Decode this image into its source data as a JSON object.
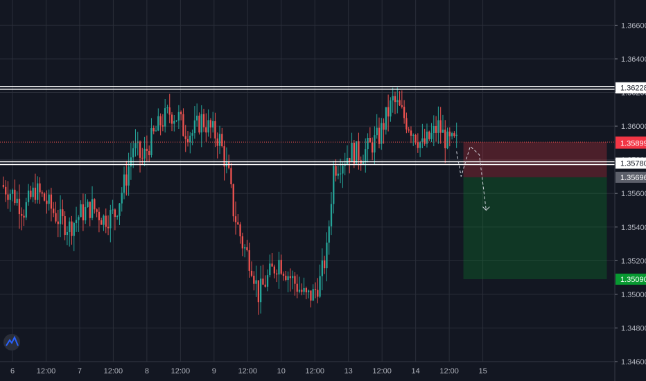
{
  "colors": {
    "background": "#131722",
    "grid": "#2a2e39",
    "bull": "#26a69a",
    "bear": "#ef5350",
    "axis_text": "#b2b5be",
    "level_line": "#ffffff",
    "stop_zone": "rgba(242,54,69,0.25)",
    "target_zone": "rgba(8,153,49,0.25)",
    "badge_red": "#f23645",
    "badge_green": "#089931",
    "badge_gray": "#5d606b",
    "badge_white": "#ffffff"
  },
  "logo": {
    "icon": "tradingview-mountain-icon"
  },
  "chart_data": {
    "type": "candlestick",
    "timeframe": "hourly",
    "x_range": [
      "6",
      "15"
    ],
    "ylim": [
      1.346,
      1.3675
    ],
    "y_ticks": [
      "1.36600",
      "1.36400",
      "1.36200",
      "1.36000",
      "1.35800",
      "1.35600",
      "1.35400",
      "1.35200",
      "1.35000",
      "1.34800",
      "1.34600"
    ],
    "x_ticks": [
      "6",
      "12:00",
      "7",
      "12:00",
      "8",
      "12:00",
      "9",
      "12:00",
      "10",
      "12:00",
      "13",
      "12:00",
      "14",
      "12:00",
      "15"
    ],
    "close_path": [
      [
        0,
        1.3565
      ],
      [
        5,
        1.356
      ],
      [
        10,
        1.355
      ],
      [
        15,
        1.3562
      ],
      [
        20,
        1.3555
      ],
      [
        25,
        1.3545
      ],
      [
        30,
        1.354
      ],
      [
        35,
        1.3548
      ],
      [
        40,
        1.3552
      ],
      [
        45,
        1.3545
      ],
      [
        50,
        1.3548
      ],
      [
        55,
        1.357
      ],
      [
        58,
        1.3588
      ],
      [
        62,
        1.358
      ],
      [
        66,
        1.3592
      ],
      [
        70,
        1.3602
      ],
      [
        74,
        1.3608
      ],
      [
        78,
        1.3605
      ],
      [
        80,
        1.3598
      ],
      [
        84,
        1.3596
      ],
      [
        88,
        1.3604
      ],
      [
        92,
        1.3598
      ],
      [
        96,
        1.3592
      ],
      [
        100,
        1.357
      ],
      [
        102,
        1.355
      ],
      [
        106,
        1.353
      ],
      [
        110,
        1.3518
      ],
      [
        113,
        1.35
      ],
      [
        118,
        1.3512
      ],
      [
        122,
        1.352
      ],
      [
        126,
        1.3512
      ],
      [
        130,
        1.3505
      ],
      [
        134,
        1.3498
      ],
      [
        137,
        1.35
      ],
      [
        140,
        1.3508
      ],
      [
        143,
        1.3525
      ],
      [
        146,
        1.3575
      ],
      [
        150,
        1.358
      ],
      [
        154,
        1.3585
      ],
      [
        158,
        1.3583
      ],
      [
        162,
        1.3588
      ],
      [
        166,
        1.3594
      ],
      [
        169,
        1.3605
      ],
      [
        172,
        1.3615
      ],
      [
        174,
        1.3612
      ],
      [
        178,
        1.3603
      ],
      [
        182,
        1.3595
      ],
      [
        185,
        1.3588
      ],
      [
        189,
        1.3594
      ],
      [
        192,
        1.36
      ],
      [
        196,
        1.359
      ],
      [
        200,
        1.359
      ]
    ],
    "series": [
      {
        "name": "",
        "kind": "price"
      }
    ],
    "horizontal_levels": [
      {
        "label": "1.36228",
        "value": 1.36228,
        "style": "white"
      },
      {
        "label": "1.35780",
        "value": 1.3578,
        "style": "white"
      }
    ],
    "price_badges": [
      {
        "label": "1.35905",
        "value": 1.35905,
        "style": "red"
      },
      {
        "label": "1.35899",
        "value": 1.35899,
        "style": "red"
      },
      {
        "label": "1.35696",
        "value": 1.35696,
        "style": "gray"
      },
      {
        "label": "1.35090",
        "value": 1.3509,
        "style": "green"
      }
    ],
    "position": {
      "direction": "short",
      "entry": 1.35696,
      "stop": 1.35905,
      "target": 1.3509,
      "start_bar": 203,
      "end_bar": 266
    },
    "current_price": 1.35899,
    "projection": [
      [
        200,
        1.3585
      ],
      [
        202,
        1.357
      ],
      [
        206,
        1.3588
      ],
      [
        210,
        1.3583
      ],
      [
        213,
        1.355
      ]
    ],
    "total_bars": 270
  }
}
